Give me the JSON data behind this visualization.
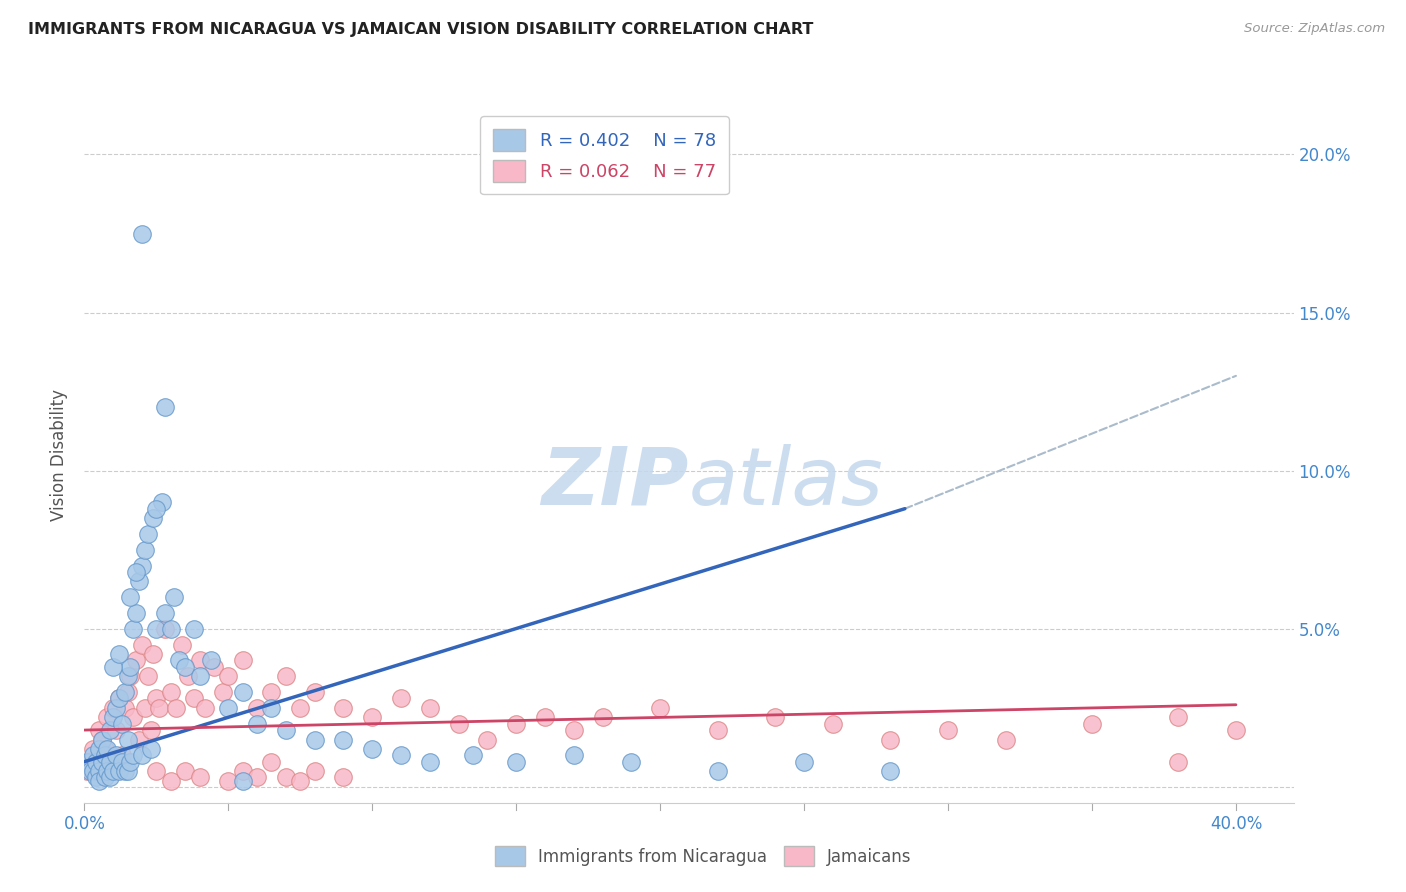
{
  "title": "IMMIGRANTS FROM NICARAGUA VS JAMAICAN VISION DISABILITY CORRELATION CHART",
  "source": "Source: ZipAtlas.com",
  "ylabel": "Vision Disability",
  "xlim": [
    0.0,
    0.42
  ],
  "ylim": [
    -0.005,
    0.215
  ],
  "ytick_positions": [
    0.0,
    0.05,
    0.1,
    0.15,
    0.2
  ],
  "ytick_labels": [
    "",
    "5.0%",
    "10.0%",
    "15.0%",
    "20.0%"
  ],
  "xtick_positions": [
    0.0,
    0.05,
    0.1,
    0.15,
    0.2,
    0.25,
    0.3,
    0.35,
    0.4
  ],
  "xtick_labels": [
    "0.0%",
    "",
    "",
    "",
    "",
    "",
    "",
    "",
    "40.0%"
  ],
  "legend_r1": "R = 0.402",
  "legend_n1": "N = 78",
  "legend_r2": "R = 0.062",
  "legend_n2": "N = 77",
  "blue_fill_color": "#a8c8e8",
  "pink_fill_color": "#f8b8c8",
  "blue_edge_color": "#6699cc",
  "pink_edge_color": "#dd8888",
  "blue_line_color": "#3366bb",
  "pink_line_color": "#cc4466",
  "dashed_line_color": "#aabbcc",
  "text_blue": "#3366bb",
  "text_pink": "#cc4466",
  "watermark_color": "#c5d8ee",
  "background_color": "#ffffff",
  "grid_color": "#cccccc",
  "title_color": "#222222",
  "tick_color": "#4488cc",
  "blue_scatter_x": [
    0.001,
    0.002,
    0.003,
    0.003,
    0.004,
    0.004,
    0.005,
    0.005,
    0.005,
    0.006,
    0.006,
    0.007,
    0.007,
    0.008,
    0.008,
    0.009,
    0.009,
    0.009,
    0.01,
    0.01,
    0.011,
    0.011,
    0.012,
    0.012,
    0.013,
    0.013,
    0.014,
    0.014,
    0.015,
    0.015,
    0.015,
    0.016,
    0.016,
    0.017,
    0.017,
    0.018,
    0.019,
    0.02,
    0.02,
    0.021,
    0.022,
    0.023,
    0.024,
    0.025,
    0.027,
    0.028,
    0.03,
    0.031,
    0.033,
    0.035,
    0.038,
    0.04,
    0.044,
    0.05,
    0.055,
    0.06,
    0.065,
    0.07,
    0.08,
    0.09,
    0.1,
    0.11,
    0.12,
    0.135,
    0.15,
    0.17,
    0.19,
    0.22,
    0.25,
    0.28,
    0.01,
    0.012,
    0.016,
    0.018,
    0.02,
    0.025,
    0.028,
    0.055
  ],
  "blue_scatter_y": [
    0.008,
    0.005,
    0.01,
    0.005,
    0.008,
    0.003,
    0.012,
    0.005,
    0.002,
    0.015,
    0.008,
    0.01,
    0.003,
    0.012,
    0.005,
    0.018,
    0.008,
    0.003,
    0.022,
    0.005,
    0.025,
    0.01,
    0.028,
    0.005,
    0.02,
    0.008,
    0.03,
    0.005,
    0.035,
    0.015,
    0.005,
    0.038,
    0.008,
    0.05,
    0.01,
    0.055,
    0.065,
    0.07,
    0.01,
    0.075,
    0.08,
    0.012,
    0.085,
    0.05,
    0.09,
    0.055,
    0.05,
    0.06,
    0.04,
    0.038,
    0.05,
    0.035,
    0.04,
    0.025,
    0.03,
    0.02,
    0.025,
    0.018,
    0.015,
    0.015,
    0.012,
    0.01,
    0.008,
    0.01,
    0.008,
    0.01,
    0.008,
    0.005,
    0.008,
    0.005,
    0.038,
    0.042,
    0.06,
    0.068,
    0.175,
    0.088,
    0.12,
    0.002
  ],
  "pink_scatter_x": [
    0.001,
    0.002,
    0.003,
    0.004,
    0.005,
    0.005,
    0.006,
    0.007,
    0.008,
    0.009,
    0.01,
    0.011,
    0.012,
    0.013,
    0.014,
    0.015,
    0.016,
    0.017,
    0.018,
    0.019,
    0.02,
    0.021,
    0.022,
    0.023,
    0.024,
    0.025,
    0.026,
    0.028,
    0.03,
    0.032,
    0.034,
    0.036,
    0.038,
    0.04,
    0.042,
    0.045,
    0.048,
    0.05,
    0.055,
    0.06,
    0.065,
    0.07,
    0.075,
    0.08,
    0.09,
    0.1,
    0.11,
    0.12,
    0.13,
    0.14,
    0.15,
    0.16,
    0.17,
    0.18,
    0.2,
    0.22,
    0.24,
    0.26,
    0.28,
    0.3,
    0.32,
    0.35,
    0.38,
    0.4,
    0.025,
    0.03,
    0.035,
    0.04,
    0.05,
    0.055,
    0.06,
    0.065,
    0.07,
    0.075,
    0.08,
    0.09,
    0.38
  ],
  "pink_scatter_y": [
    0.005,
    0.008,
    0.012,
    0.005,
    0.018,
    0.008,
    0.015,
    0.012,
    0.022,
    0.008,
    0.025,
    0.018,
    0.028,
    0.01,
    0.025,
    0.03,
    0.035,
    0.022,
    0.04,
    0.015,
    0.045,
    0.025,
    0.035,
    0.018,
    0.042,
    0.028,
    0.025,
    0.05,
    0.03,
    0.025,
    0.045,
    0.035,
    0.028,
    0.04,
    0.025,
    0.038,
    0.03,
    0.035,
    0.04,
    0.025,
    0.03,
    0.035,
    0.025,
    0.03,
    0.025,
    0.022,
    0.028,
    0.025,
    0.02,
    0.015,
    0.02,
    0.022,
    0.018,
    0.022,
    0.025,
    0.018,
    0.022,
    0.02,
    0.015,
    0.018,
    0.015,
    0.02,
    0.022,
    0.018,
    0.005,
    0.002,
    0.005,
    0.003,
    0.002,
    0.005,
    0.003,
    0.008,
    0.003,
    0.002,
    0.005,
    0.003,
    0.008
  ],
  "blue_line_x": [
    0.0,
    0.285
  ],
  "blue_line_y": [
    0.008,
    0.088
  ],
  "pink_line_x": [
    0.0,
    0.4
  ],
  "pink_line_y": [
    0.018,
    0.026
  ],
  "dashed_line_x": [
    0.285,
    0.4
  ],
  "dashed_line_y": [
    0.088,
    0.13
  ]
}
